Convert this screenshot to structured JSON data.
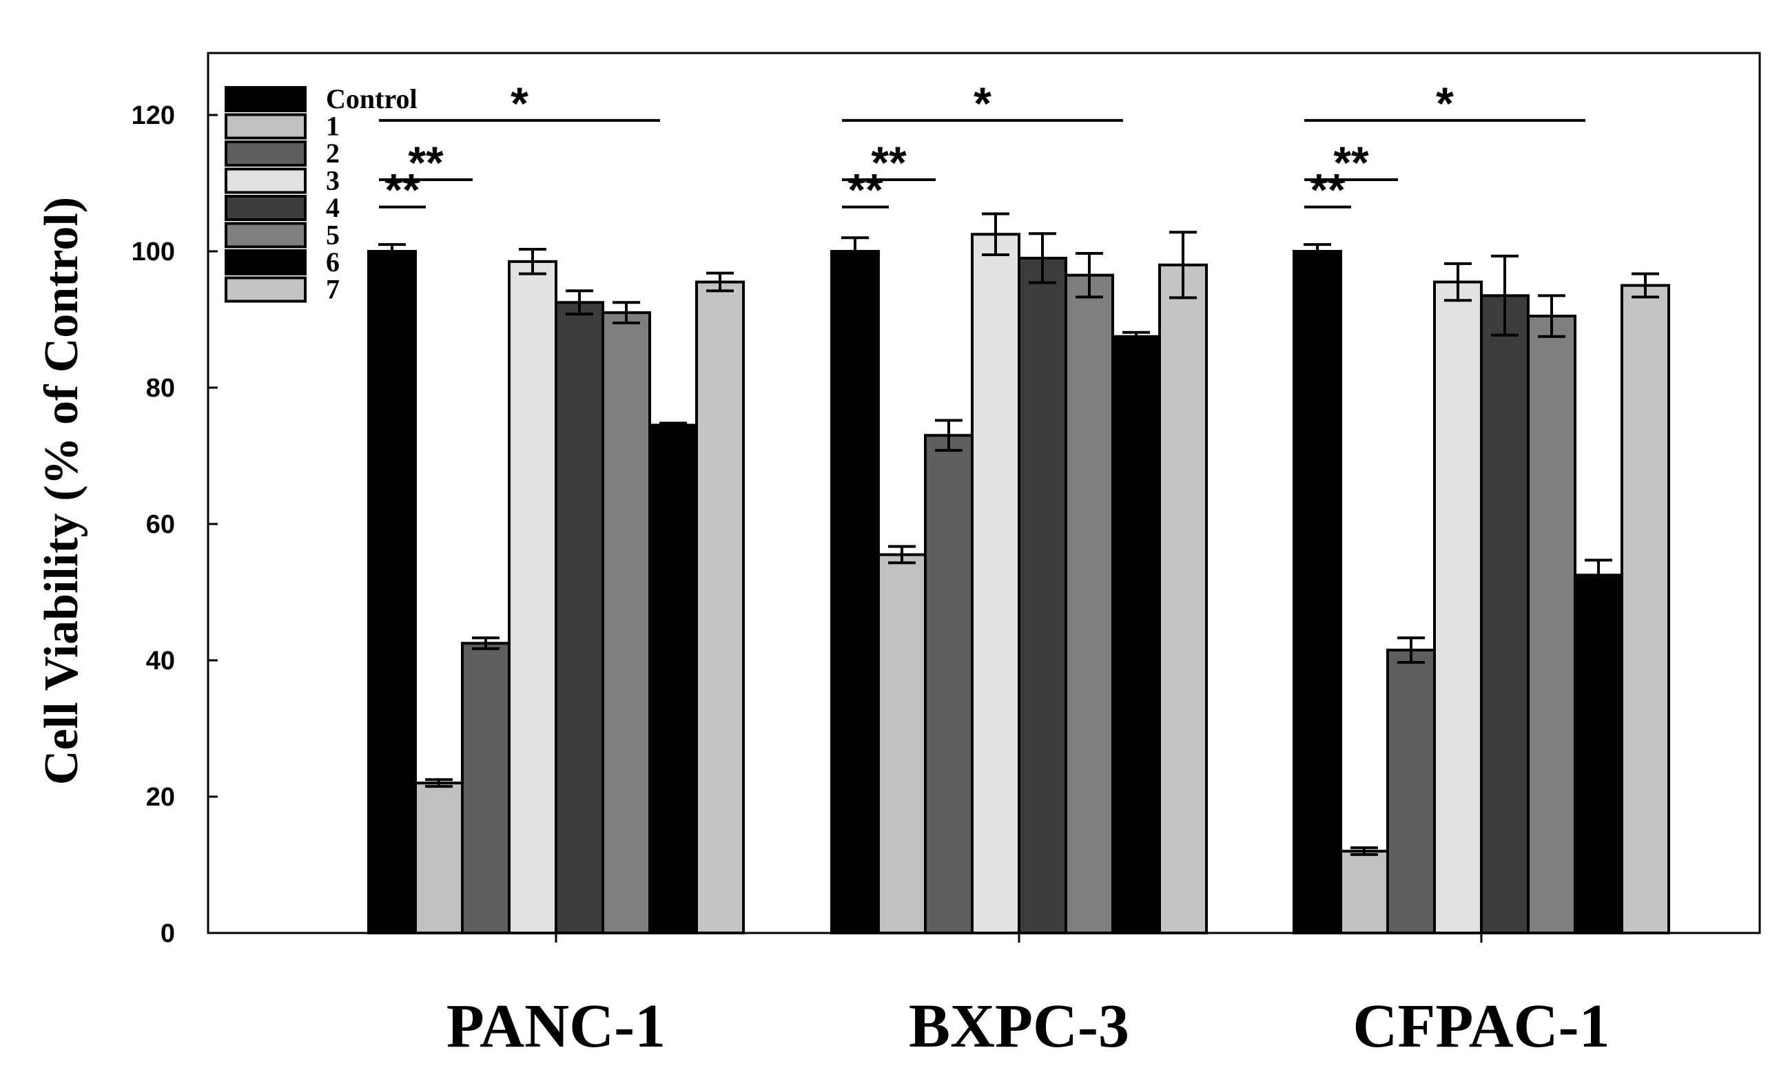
{
  "chart_data": {
    "type": "bar",
    "title": "",
    "xlabel": "",
    "ylabel": "Cell Viability (% of Control)",
    "ylim": [
      0,
      130
    ],
    "yticks": [
      0,
      20,
      40,
      60,
      80,
      100,
      120
    ],
    "categories": [
      "PANC-1",
      "BXPC-3",
      "CFPAC-1"
    ],
    "legend_position": "top-left",
    "series": [
      {
        "name": "Control",
        "color": "#000000",
        "values": [
          100,
          100,
          100
        ],
        "errors": [
          1,
          2,
          1
        ]
      },
      {
        "name": "1",
        "color": "#c0c0c0",
        "values": [
          22,
          55.5,
          12
        ],
        "errors": [
          0.5,
          1.2,
          0.5
        ]
      },
      {
        "name": "2",
        "color": "#5e5e5e",
        "values": [
          42.5,
          73,
          41.5
        ],
        "errors": [
          0.8,
          2.2,
          1.8
        ]
      },
      {
        "name": "3",
        "color": "#e2e2e2",
        "values": [
          98.5,
          102.5,
          95.5
        ],
        "errors": [
          1.8,
          3,
          2.7
        ]
      },
      {
        "name": "4",
        "color": "#3c3c3c",
        "values": [
          92.5,
          99,
          93.5
        ],
        "errors": [
          1.7,
          3.6,
          5.8
        ]
      },
      {
        "name": "5",
        "color": "#7e7e7e",
        "values": [
          91,
          96.5,
          90.5
        ],
        "errors": [
          1.5,
          3.2,
          3
        ]
      },
      {
        "name": "6",
        "color": "#000000",
        "values": [
          74.5,
          87.5,
          52.5
        ],
        "errors": [
          0.3,
          0.6,
          2.2
        ]
      },
      {
        "name": "7",
        "color": "#c4c4c4",
        "values": [
          95.5,
          98,
          95
        ],
        "errors": [
          1.3,
          4.8,
          1.7
        ]
      }
    ],
    "significance": [
      {
        "category": "PANC-1",
        "from_series": 0,
        "to_series": 1,
        "label": "**"
      },
      {
        "category": "PANC-1",
        "from_series": 0,
        "to_series": 2,
        "label": "**"
      },
      {
        "category": "PANC-1",
        "from_series": 0,
        "to_series": 6,
        "label": "*"
      },
      {
        "category": "BXPC-3",
        "from_series": 0,
        "to_series": 1,
        "label": "**"
      },
      {
        "category": "BXPC-3",
        "from_series": 0,
        "to_series": 2,
        "label": "**"
      },
      {
        "category": "BXPC-3",
        "from_series": 0,
        "to_series": 6,
        "label": "*"
      },
      {
        "category": "CFPAC-1",
        "from_series": 0,
        "to_series": 1,
        "label": "**"
      },
      {
        "category": "CFPAC-1",
        "from_series": 0,
        "to_series": 2,
        "label": "**"
      },
      {
        "category": "CFPAC-1",
        "from_series": 0,
        "to_series": 6,
        "label": "*"
      }
    ]
  }
}
